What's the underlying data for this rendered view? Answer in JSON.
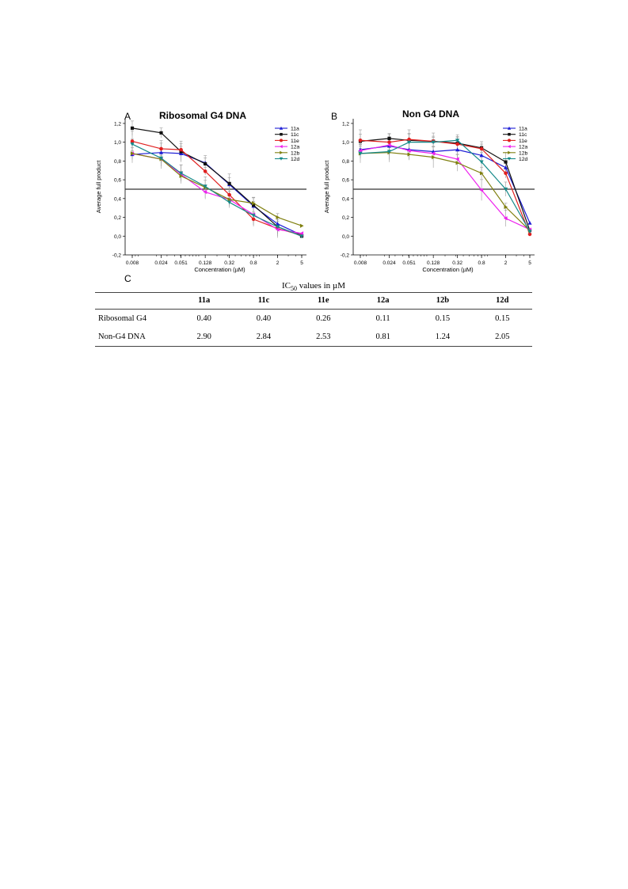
{
  "chart_data": [
    {
      "type": "line",
      "panel": "A",
      "title": "Ribosomal G4 DNA",
      "xlabel": "Concentration (µM)",
      "ylabel": "Average full product",
      "x_scale": "log",
      "x": [
        0.008,
        0.024,
        0.051,
        0.128,
        0.32,
        0.8,
        2,
        5
      ],
      "x_tick_labels": [
        "0.008",
        "0.024",
        "0.051",
        "0.128",
        "0.32",
        "0.8",
        "2",
        "5"
      ],
      "ylim": [
        -0.2,
        1.25
      ],
      "y_ticks": [
        -0.2,
        0.0,
        0.2,
        0.4,
        0.6,
        0.8,
        1.0,
        1.2
      ],
      "y_tick_labels": [
        "-0,2",
        "0,0",
        "0,2",
        "0,4",
        "0,6",
        "0,8",
        "1,0",
        "1,2"
      ],
      "reference_line": 0.5,
      "legend_position": "top-right",
      "series": [
        {
          "name": "11a",
          "color": "#1c1cd6",
          "marker": "triangle-up",
          "values": [
            0.87,
            0.89,
            0.88,
            0.78,
            0.55,
            0.32,
            0.13,
            0.01
          ]
        },
        {
          "name": "11c",
          "color": "#111111",
          "marker": "square",
          "values": [
            1.15,
            1.1,
            0.9,
            0.77,
            0.56,
            0.33,
            0.1,
            0.0
          ]
        },
        {
          "name": "11e",
          "color": "#e02020",
          "marker": "circle",
          "values": [
            1.01,
            0.93,
            0.92,
            0.69,
            0.44,
            0.18,
            0.08,
            0.01
          ]
        },
        {
          "name": "12a",
          "color": "#ee22ee",
          "marker": "triangle-left",
          "values": [
            0.88,
            0.82,
            0.66,
            0.47,
            0.39,
            0.23,
            0.07,
            0.03
          ]
        },
        {
          "name": "12b",
          "color": "#808010",
          "marker": "triangle-right",
          "values": [
            0.88,
            0.82,
            0.64,
            0.52,
            0.39,
            0.35,
            0.2,
            0.11
          ]
        },
        {
          "name": "12d",
          "color": "#178a8a",
          "marker": "triangle-down",
          "values": [
            0.98,
            0.83,
            0.67,
            0.53,
            0.36,
            0.22,
            0.1,
            0.0
          ]
        }
      ]
    },
    {
      "type": "line",
      "panel": "B",
      "title": "Non G4 DNA",
      "xlabel": "Concentration (µM)",
      "ylabel": "Average full product",
      "x_scale": "log",
      "x": [
        0.008,
        0.024,
        0.051,
        0.128,
        0.32,
        0.8,
        2,
        5
      ],
      "x_tick_labels": [
        "0.008",
        "0.024",
        "0.051",
        "0.128",
        "0.32",
        "0.8",
        "2",
        "5"
      ],
      "ylim": [
        -0.2,
        1.25
      ],
      "y_ticks": [
        -0.2,
        0.0,
        0.2,
        0.4,
        0.6,
        0.8,
        1.0,
        1.2
      ],
      "y_tick_labels": [
        "-0,2",
        "0,0",
        "0,2",
        "0,4",
        "0,6",
        "0,8",
        "1,0",
        "1,2"
      ],
      "reference_line": 0.5,
      "legend_position": "top-right",
      "series": [
        {
          "name": "11a",
          "color": "#1c1cd6",
          "marker": "triangle-up",
          "values": [
            0.92,
            0.96,
            0.92,
            0.9,
            0.92,
            0.86,
            0.73,
            0.14
          ]
        },
        {
          "name": "11c",
          "color": "#111111",
          "marker": "square",
          "values": [
            1.01,
            1.04,
            1.02,
            1.01,
            0.99,
            0.94,
            0.79,
            0.06
          ]
        },
        {
          "name": "11e",
          "color": "#e02020",
          "marker": "circle",
          "values": [
            1.02,
            1.0,
            1.03,
            1.01,
            0.98,
            0.93,
            0.67,
            0.02
          ]
        },
        {
          "name": "12a",
          "color": "#ee22ee",
          "marker": "triangle-left",
          "values": [
            0.91,
            0.97,
            0.91,
            0.88,
            0.82,
            0.49,
            0.19,
            0.07
          ]
        },
        {
          "name": "12b",
          "color": "#808010",
          "marker": "triangle-right",
          "values": [
            0.88,
            0.89,
            0.87,
            0.84,
            0.78,
            0.67,
            0.31,
            0.06
          ]
        },
        {
          "name": "12d",
          "color": "#178a8a",
          "marker": "triangle-down",
          "values": [
            0.88,
            0.9,
            1.0,
            1.0,
            1.02,
            0.79,
            0.5,
            0.05
          ]
        }
      ]
    }
  ],
  "panel_c": {
    "letter": "C",
    "caption_prefix": "IC",
    "caption_sub": "50",
    "caption_suffix": " values in µM",
    "headers": [
      "",
      "11a",
      "11c",
      "11e",
      "12a",
      "12b",
      "12d"
    ],
    "rows": [
      {
        "label": "Ribosomal G4",
        "values": [
          "0.40",
          "0.40",
          "0.26",
          "0.11",
          "0.15",
          "0.15"
        ]
      },
      {
        "label": "Non-G4 DNA",
        "values": [
          "2.90",
          "2.84",
          "2.53",
          "0.81",
          "1.24",
          "2.05"
        ]
      }
    ]
  }
}
